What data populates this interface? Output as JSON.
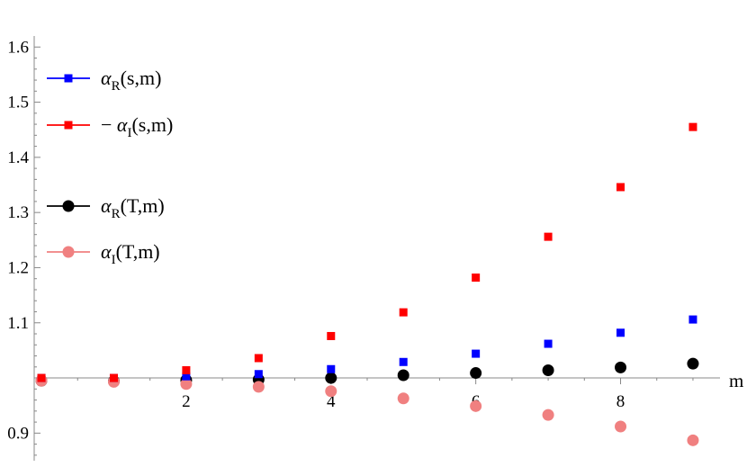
{
  "chart_data": {
    "type": "scatter",
    "title": "",
    "xlabel": "m",
    "ylabel": "",
    "xlim": [
      -0.1,
      9.1
    ],
    "ylim": [
      0.85,
      1.62
    ],
    "x_origin_y": 1.0,
    "x_ticks": [
      2,
      4,
      6,
      8
    ],
    "x_tick_labels": [
      "2",
      "4",
      "6",
      "8"
    ],
    "y_ticks": [
      0.9,
      1.1,
      1.2,
      1.3,
      1.4,
      1.5,
      1.6
    ],
    "y_tick_labels": [
      "0.9",
      "1.1",
      "1.2",
      "1.3",
      "1.4",
      "1.5",
      "1.6"
    ],
    "grid": false,
    "legend_position": "top-left",
    "series": [
      {
        "name": "αR(s,m)",
        "marker": "square",
        "color": "#0000ff",
        "x": [
          0,
          1,
          2,
          3,
          4,
          5,
          6,
          7,
          8,
          9
        ],
        "y": [
          1.0,
          1.0,
          1.003,
          1.007,
          1.016,
          1.029,
          1.044,
          1.062,
          1.082,
          1.106
        ]
      },
      {
        "name": "− αI(s,m)",
        "marker": "square",
        "color": "#ff0000",
        "x": [
          0,
          1,
          2,
          3,
          4,
          5,
          6,
          7,
          8,
          9
        ],
        "y": [
          1.0,
          1.0,
          1.014,
          1.036,
          1.076,
          1.119,
          1.182,
          1.256,
          1.346,
          1.455
        ]
      },
      {
        "name": "αR(T,m)",
        "marker": "circle",
        "color": "#000000",
        "x": [
          0,
          1,
          2,
          3,
          4,
          5,
          6,
          7,
          8,
          9
        ],
        "y": [
          0.995,
          0.994,
          0.996,
          0.997,
          1.0,
          1.005,
          1.009,
          1.014,
          1.019,
          1.026
        ]
      },
      {
        "name": "αI(T,m)",
        "marker": "circle",
        "color": "#f08080",
        "x": [
          0,
          1,
          2,
          3,
          4,
          5,
          6,
          7,
          8,
          9
        ],
        "y": [
          0.995,
          0.993,
          0.989,
          0.984,
          0.976,
          0.963,
          0.949,
          0.933,
          0.912,
          0.887
        ]
      }
    ],
    "legend": [
      {
        "series": 0,
        "base": "α",
        "sub": "R",
        "arg": "(s,m)",
        "prefix": ""
      },
      {
        "series": 1,
        "base": "α",
        "sub": "I",
        "arg": "(s,m)",
        "prefix": "−"
      },
      {
        "series": 2,
        "base": "α",
        "sub": "R",
        "arg": "(T,m)",
        "prefix": ""
      },
      {
        "series": 3,
        "base": "α",
        "sub": "I",
        "arg": "(T,m)",
        "prefix": ""
      }
    ]
  }
}
